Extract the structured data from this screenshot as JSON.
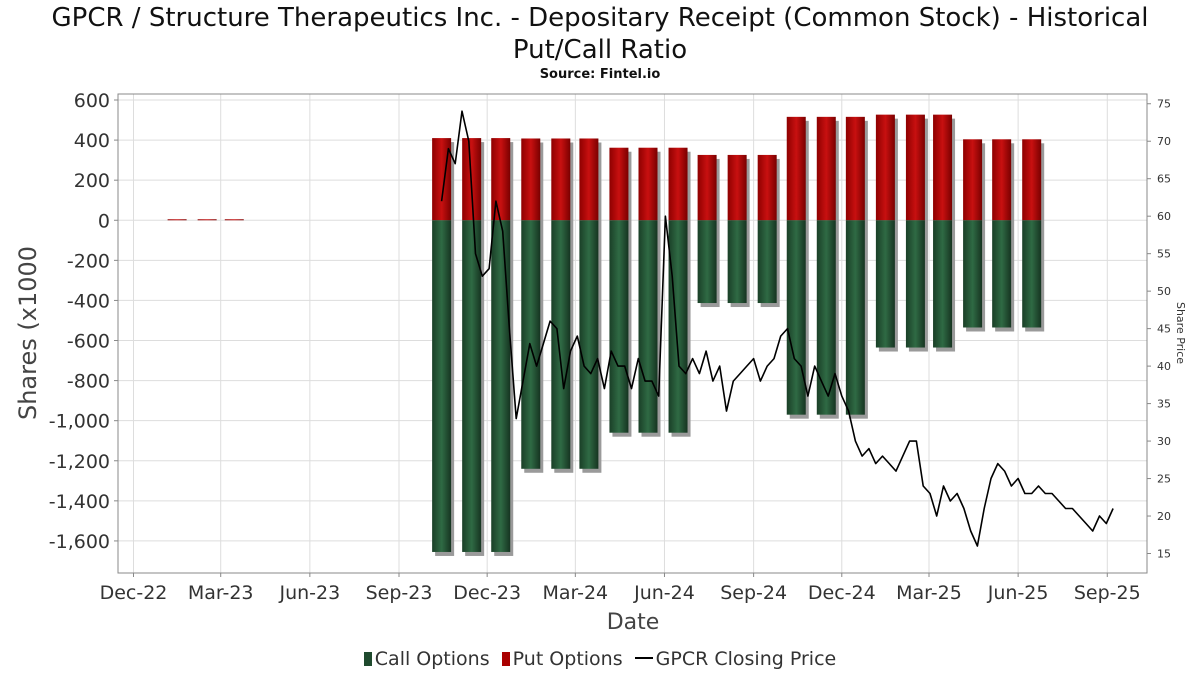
{
  "title_line1": "GPCR / Structure Therapeutics Inc. - Depositary Receipt (Common Stock) - Historical",
  "title_line2": "Put/Call Ratio",
  "subtitle": "Source: Fintel.io",
  "legend": {
    "call": "Call Options",
    "put": "Put Options",
    "price": "GPCR Closing Price"
  },
  "colors": {
    "call": "#1f4a2e",
    "put": "#aa0000",
    "price": "#000000",
    "shadow": "#9a9a9a",
    "grid": "#dddddd"
  },
  "chart_data": {
    "type": "bar",
    "xlabel": "Date",
    "ylabel": "Shares (x1000",
    "y2label": "Share Price",
    "ylim": [
      -1760,
      630
    ],
    "y2lim": [
      12.4,
      76.3
    ],
    "yticks": [
      600,
      400,
      200,
      0,
      -200,
      -400,
      -600,
      -800,
      -1000,
      -1200,
      -1400,
      -1600
    ],
    "ytick_labels": [
      "600",
      "400",
      "200",
      "0",
      "-200",
      "-400",
      "-600",
      "-800",
      "-1,000",
      "-1,200",
      "-1,400",
      "-1,600"
    ],
    "y2ticks": [
      75,
      70,
      65,
      60,
      55,
      50,
      45,
      40,
      35,
      30,
      25,
      20,
      15
    ],
    "xlim": [
      "2022-11-15",
      "2025-10-12"
    ],
    "xticks": [
      "2022-12-01",
      "2023-03-01",
      "2023-06-01",
      "2023-09-01",
      "2023-12-01",
      "2024-03-01",
      "2024-06-01",
      "2024-09-01",
      "2024-12-01",
      "2025-03-01",
      "2025-06-01",
      "2025-09-01"
    ],
    "xtick_labels": [
      "Dec-22",
      "Mar-23",
      "Jun-23",
      "Sep-23",
      "Dec-23",
      "Mar-24",
      "Jun-24",
      "Sep-24",
      "Dec-24",
      "Mar-25",
      "Jun-25",
      "Sep-25"
    ],
    "grid": true,
    "legend_position": "bottom",
    "dates": [
      "2023-01-15",
      "2023-02-15",
      "2023-03-15",
      "2023-10-15",
      "2023-11-15",
      "2023-12-15",
      "2024-01-15",
      "2024-02-15",
      "2024-03-15",
      "2024-04-15",
      "2024-05-15",
      "2024-06-15",
      "2024-07-15",
      "2024-08-15",
      "2024-09-15",
      "2024-10-15",
      "2024-11-15",
      "2024-12-15",
      "2025-01-15",
      "2025-02-15",
      "2025-03-15",
      "2025-04-15",
      "2025-05-15",
      "2025-06-15"
    ],
    "series": [
      {
        "name": "Put Options",
        "values": [
          2,
          2,
          2,
          410,
          410,
          410,
          408,
          408,
          408,
          362,
          362,
          362,
          326,
          326,
          326,
          516,
          516,
          516,
          527,
          527,
          527,
          404,
          404,
          404
        ]
      },
      {
        "name": "Call Options",
        "values": [
          0,
          0,
          0,
          -1655,
          -1655,
          -1655,
          -1240,
          -1240,
          -1240,
          -1060,
          -1060,
          -1060,
          -413,
          -413,
          -413,
          -970,
          -970,
          -970,
          -635,
          -635,
          -635,
          -535,
          -535,
          -535
        ]
      },
      {
        "name": "GPCR Closing Price",
        "x": [
          "2023-10-15",
          "2023-10-22",
          "2023-10-29",
          "2023-11-05",
          "2023-11-12",
          "2023-11-19",
          "2023-11-26",
          "2023-12-03",
          "2023-12-10",
          "2023-12-17",
          "2023-12-24",
          "2023-12-31",
          "2024-01-07",
          "2024-01-14",
          "2024-01-21",
          "2024-01-28",
          "2024-02-04",
          "2024-02-11",
          "2024-02-18",
          "2024-02-25",
          "2024-03-03",
          "2024-03-10",
          "2024-03-17",
          "2024-03-24",
          "2024-03-31",
          "2024-04-07",
          "2024-04-14",
          "2024-04-21",
          "2024-04-28",
          "2024-05-05",
          "2024-05-12",
          "2024-05-19",
          "2024-05-26",
          "2024-06-02",
          "2024-06-09",
          "2024-06-16",
          "2024-06-23",
          "2024-06-30",
          "2024-07-07",
          "2024-07-14",
          "2024-07-21",
          "2024-07-28",
          "2024-08-04",
          "2024-08-11",
          "2024-08-18",
          "2024-08-25",
          "2024-09-01",
          "2024-09-08",
          "2024-09-15",
          "2024-09-22",
          "2024-09-29",
          "2024-10-06",
          "2024-10-13",
          "2024-10-20",
          "2024-10-27",
          "2024-11-03",
          "2024-11-10",
          "2024-11-17",
          "2024-11-24",
          "2024-12-01",
          "2024-12-08",
          "2024-12-15",
          "2024-12-22",
          "2024-12-29",
          "2025-01-05",
          "2025-01-12",
          "2025-01-19",
          "2025-01-26",
          "2025-02-02",
          "2025-02-09",
          "2025-02-16",
          "2025-02-23",
          "2025-03-02",
          "2025-03-09",
          "2025-03-16",
          "2025-03-23",
          "2025-03-30",
          "2025-04-06",
          "2025-04-13",
          "2025-04-20",
          "2025-04-27",
          "2025-05-04",
          "2025-05-11",
          "2025-05-18",
          "2025-05-25",
          "2025-06-01",
          "2025-06-08",
          "2025-06-15",
          "2025-06-22",
          "2025-06-29",
          "2025-07-06",
          "2025-07-13",
          "2025-07-20",
          "2025-07-27",
          "2025-08-03",
          "2025-08-10",
          "2025-08-17",
          "2025-08-24",
          "2025-08-31",
          "2025-09-07"
        ],
        "values": [
          62,
          69,
          67,
          74,
          70,
          55,
          52,
          53,
          62,
          58,
          45,
          33,
          38,
          43,
          40,
          43,
          46,
          45,
          37,
          42,
          44,
          40,
          39,
          41,
          37,
          42,
          40,
          40,
          37,
          41,
          38,
          38,
          36,
          60,
          52,
          40,
          39,
          41,
          39,
          42,
          38,
          40,
          34,
          38,
          39,
          40,
          41,
          38,
          40,
          41,
          44,
          45,
          41,
          40,
          36,
          40,
          38,
          36,
          39,
          36,
          34,
          30,
          28,
          29,
          27,
          28,
          27,
          26,
          28,
          30,
          30,
          24,
          23,
          20,
          24,
          22,
          23,
          21,
          18,
          16,
          21,
          25,
          27,
          26,
          24,
          25,
          23,
          23,
          24,
          23,
          23,
          22,
          21,
          21,
          20,
          19,
          18,
          20,
          19,
          21
        ]
      }
    ]
  }
}
